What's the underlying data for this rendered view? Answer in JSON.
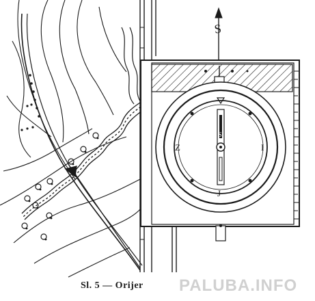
{
  "figure": {
    "north_label": "S",
    "compass_west_label": "Z",
    "compass_east_label": "I",
    "compass_south_label": "J",
    "compass_north_label": "S",
    "caption": "Sl. 5 — Orijer"
  },
  "watermark": {
    "text": "PALUBA.INFO"
  },
  "colors": {
    "ink": "#1a1a1a",
    "paper": "#ffffff"
  }
}
